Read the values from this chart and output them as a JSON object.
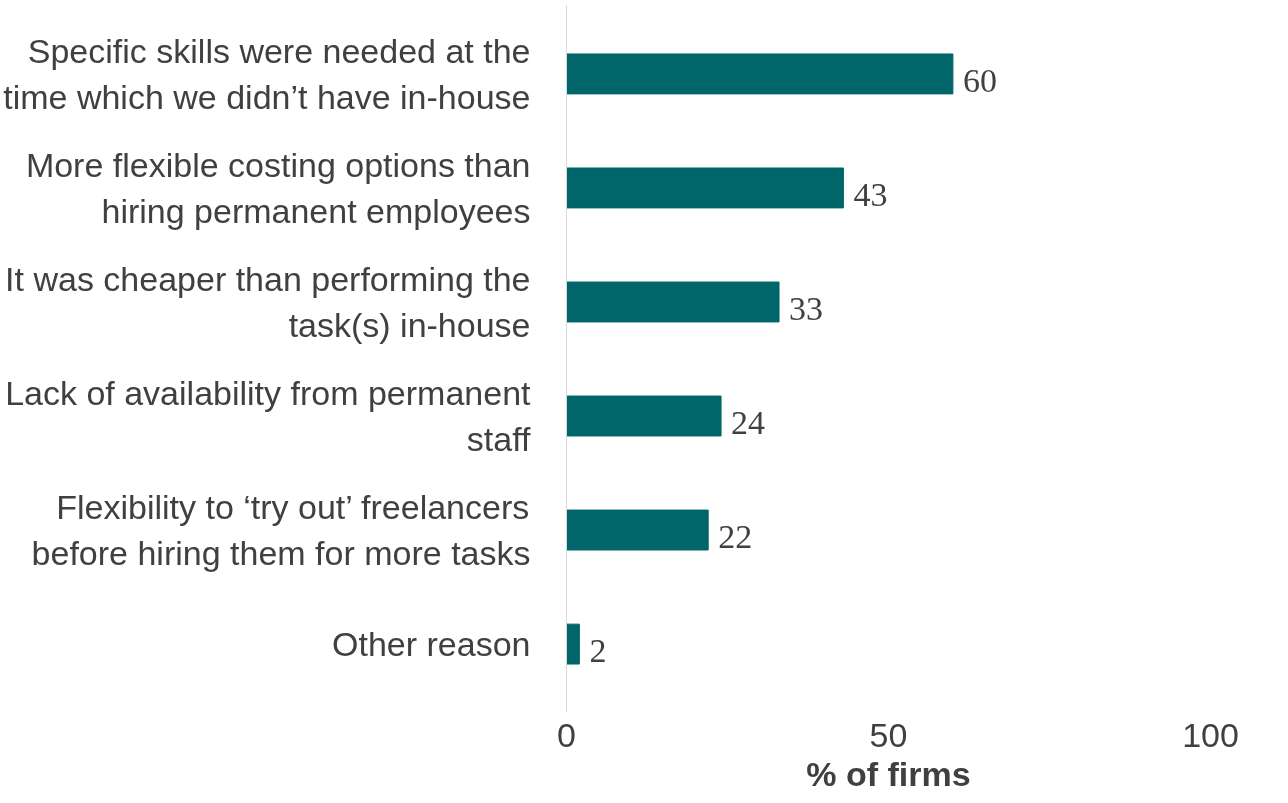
{
  "chart_data": {
    "type": "bar",
    "orientation": "horizontal",
    "xlabel": "% of firms",
    "categories": [
      "Specific skills were needed at the\ntime which we didn’t have in-house",
      "More flexible costing options than\nhiring permanent employees",
      "It was cheaper than performing the\ntask(s) in-house",
      "Lack of availability from permanent\nstaff",
      "Flexibility to ‘try out’ freelancers\nbefore hiring them for more tasks",
      "Other reason"
    ],
    "values": [
      60,
      43,
      33,
      24,
      22,
      2
    ],
    "color": "#00666a",
    "xlim": [
      0,
      100
    ],
    "xticks": [
      0,
      50,
      100
    ],
    "grid": false,
    "data_labels": true
  }
}
